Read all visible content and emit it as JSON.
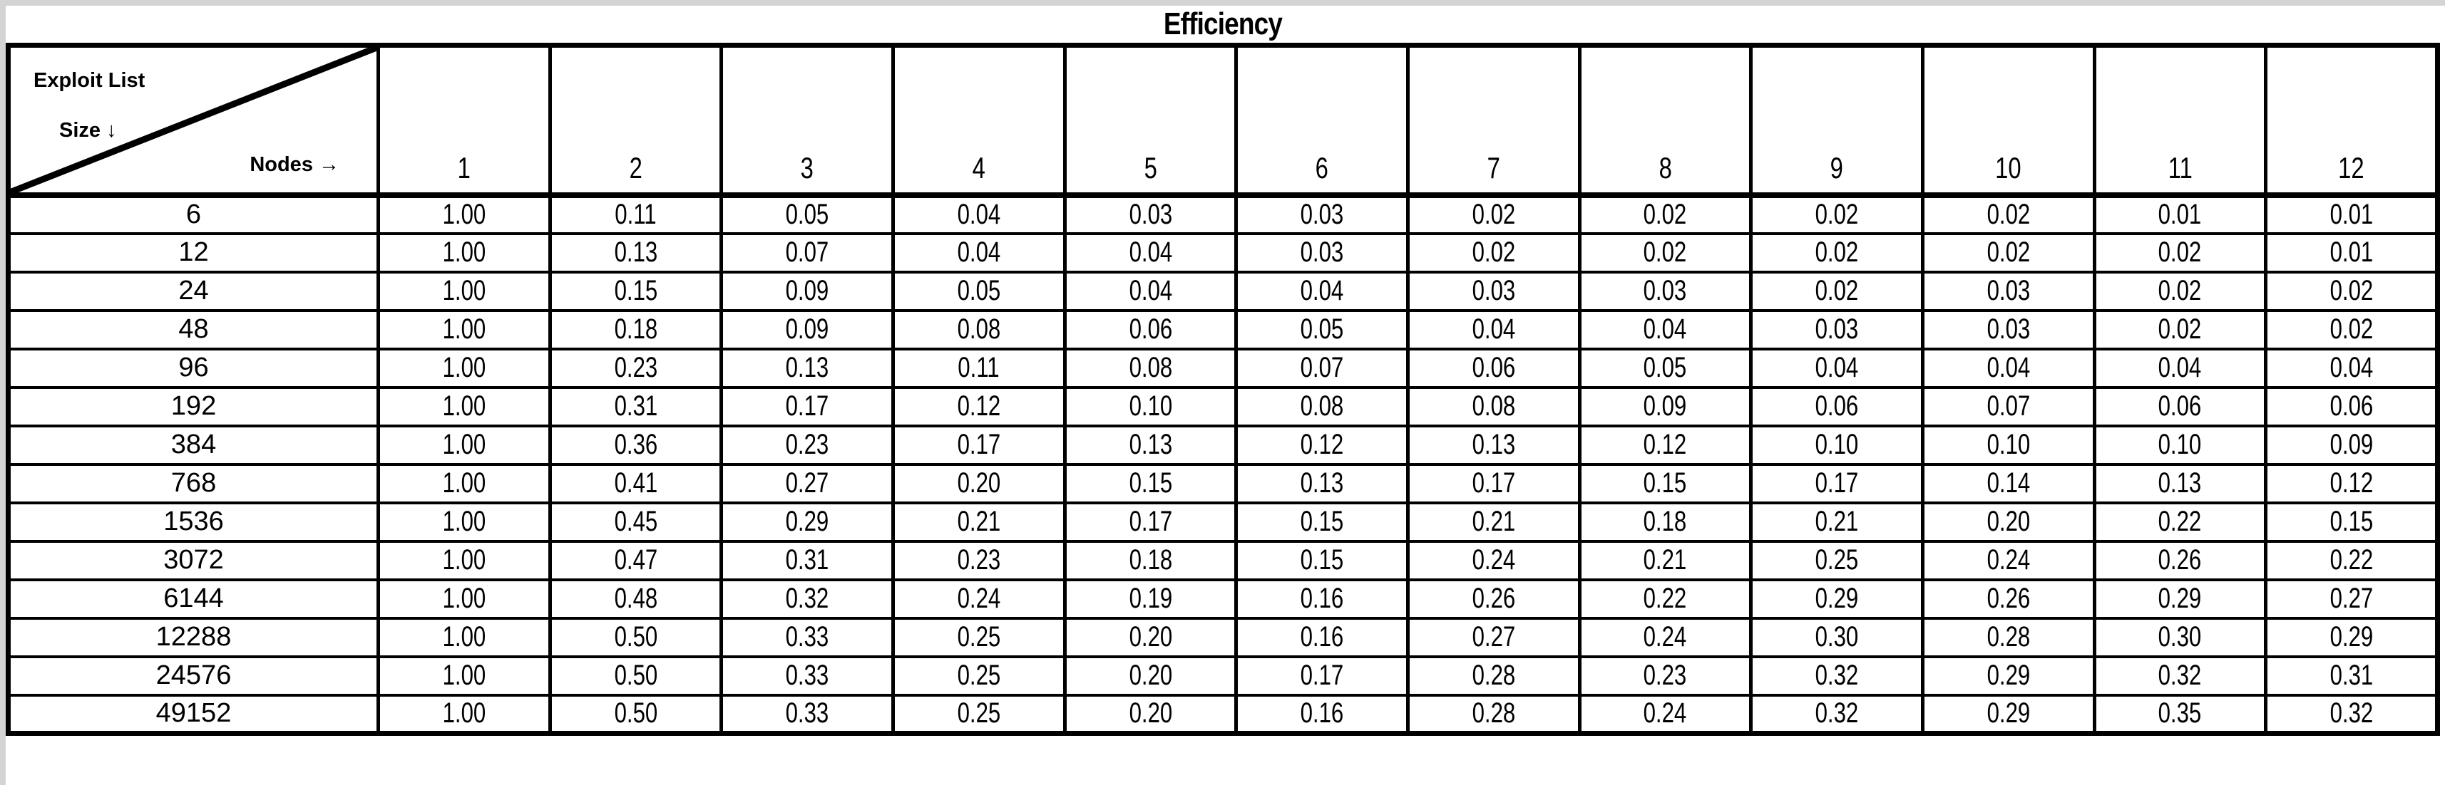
{
  "title": "Efficiency",
  "corner": {
    "line1": "Exploit List",
    "line2": "Size ↓",
    "line3": "Nodes →"
  },
  "colors": {
    "border": "#000000",
    "background": "#ffffff",
    "screen_edge": "#d4d4d4",
    "text": "#000000"
  },
  "chart_data": {
    "type": "table",
    "title": "Efficiency",
    "row_axis": "Exploit List Size",
    "col_axis": "Nodes",
    "columns": [
      "1",
      "2",
      "3",
      "4",
      "5",
      "6",
      "7",
      "8",
      "9",
      "10",
      "11",
      "12"
    ],
    "rows": [
      {
        "size": "6",
        "values": [
          "1.00",
          "0.11",
          "0.05",
          "0.04",
          "0.03",
          "0.03",
          "0.02",
          "0.02",
          "0.02",
          "0.02",
          "0.01",
          "0.01"
        ]
      },
      {
        "size": "12",
        "values": [
          "1.00",
          "0.13",
          "0.07",
          "0.04",
          "0.04",
          "0.03",
          "0.02",
          "0.02",
          "0.02",
          "0.02",
          "0.02",
          "0.01"
        ]
      },
      {
        "size": "24",
        "values": [
          "1.00",
          "0.15",
          "0.09",
          "0.05",
          "0.04",
          "0.04",
          "0.03",
          "0.03",
          "0.02",
          "0.03",
          "0.02",
          "0.02"
        ]
      },
      {
        "size": "48",
        "values": [
          "1.00",
          "0.18",
          "0.09",
          "0.08",
          "0.06",
          "0.05",
          "0.04",
          "0.04",
          "0.03",
          "0.03",
          "0.02",
          "0.02"
        ]
      },
      {
        "size": "96",
        "values": [
          "1.00",
          "0.23",
          "0.13",
          "0.11",
          "0.08",
          "0.07",
          "0.06",
          "0.05",
          "0.04",
          "0.04",
          "0.04",
          "0.04"
        ]
      },
      {
        "size": "192",
        "values": [
          "1.00",
          "0.31",
          "0.17",
          "0.12",
          "0.10",
          "0.08",
          "0.08",
          "0.09",
          "0.06",
          "0.07",
          "0.06",
          "0.06"
        ]
      },
      {
        "size": "384",
        "values": [
          "1.00",
          "0.36",
          "0.23",
          "0.17",
          "0.13",
          "0.12",
          "0.13",
          "0.12",
          "0.10",
          "0.10",
          "0.10",
          "0.09"
        ]
      },
      {
        "size": "768",
        "values": [
          "1.00",
          "0.41",
          "0.27",
          "0.20",
          "0.15",
          "0.13",
          "0.17",
          "0.15",
          "0.17",
          "0.14",
          "0.13",
          "0.12"
        ]
      },
      {
        "size": "1536",
        "values": [
          "1.00",
          "0.45",
          "0.29",
          "0.21",
          "0.17",
          "0.15",
          "0.21",
          "0.18",
          "0.21",
          "0.20",
          "0.22",
          "0.15"
        ]
      },
      {
        "size": "3072",
        "values": [
          "1.00",
          "0.47",
          "0.31",
          "0.23",
          "0.18",
          "0.15",
          "0.24",
          "0.21",
          "0.25",
          "0.24",
          "0.26",
          "0.22"
        ]
      },
      {
        "size": "6144",
        "values": [
          "1.00",
          "0.48",
          "0.32",
          "0.24",
          "0.19",
          "0.16",
          "0.26",
          "0.22",
          "0.29",
          "0.26",
          "0.29",
          "0.27"
        ]
      },
      {
        "size": "12288",
        "values": [
          "1.00",
          "0.50",
          "0.33",
          "0.25",
          "0.20",
          "0.16",
          "0.27",
          "0.24",
          "0.30",
          "0.28",
          "0.30",
          "0.29"
        ]
      },
      {
        "size": "24576",
        "values": [
          "1.00",
          "0.50",
          "0.33",
          "0.25",
          "0.20",
          "0.17",
          "0.28",
          "0.23",
          "0.32",
          "0.29",
          "0.32",
          "0.31"
        ]
      },
      {
        "size": "49152",
        "values": [
          "1.00",
          "0.50",
          "0.33",
          "0.25",
          "0.20",
          "0.16",
          "0.28",
          "0.24",
          "0.32",
          "0.29",
          "0.35",
          "0.32"
        ]
      }
    ]
  }
}
